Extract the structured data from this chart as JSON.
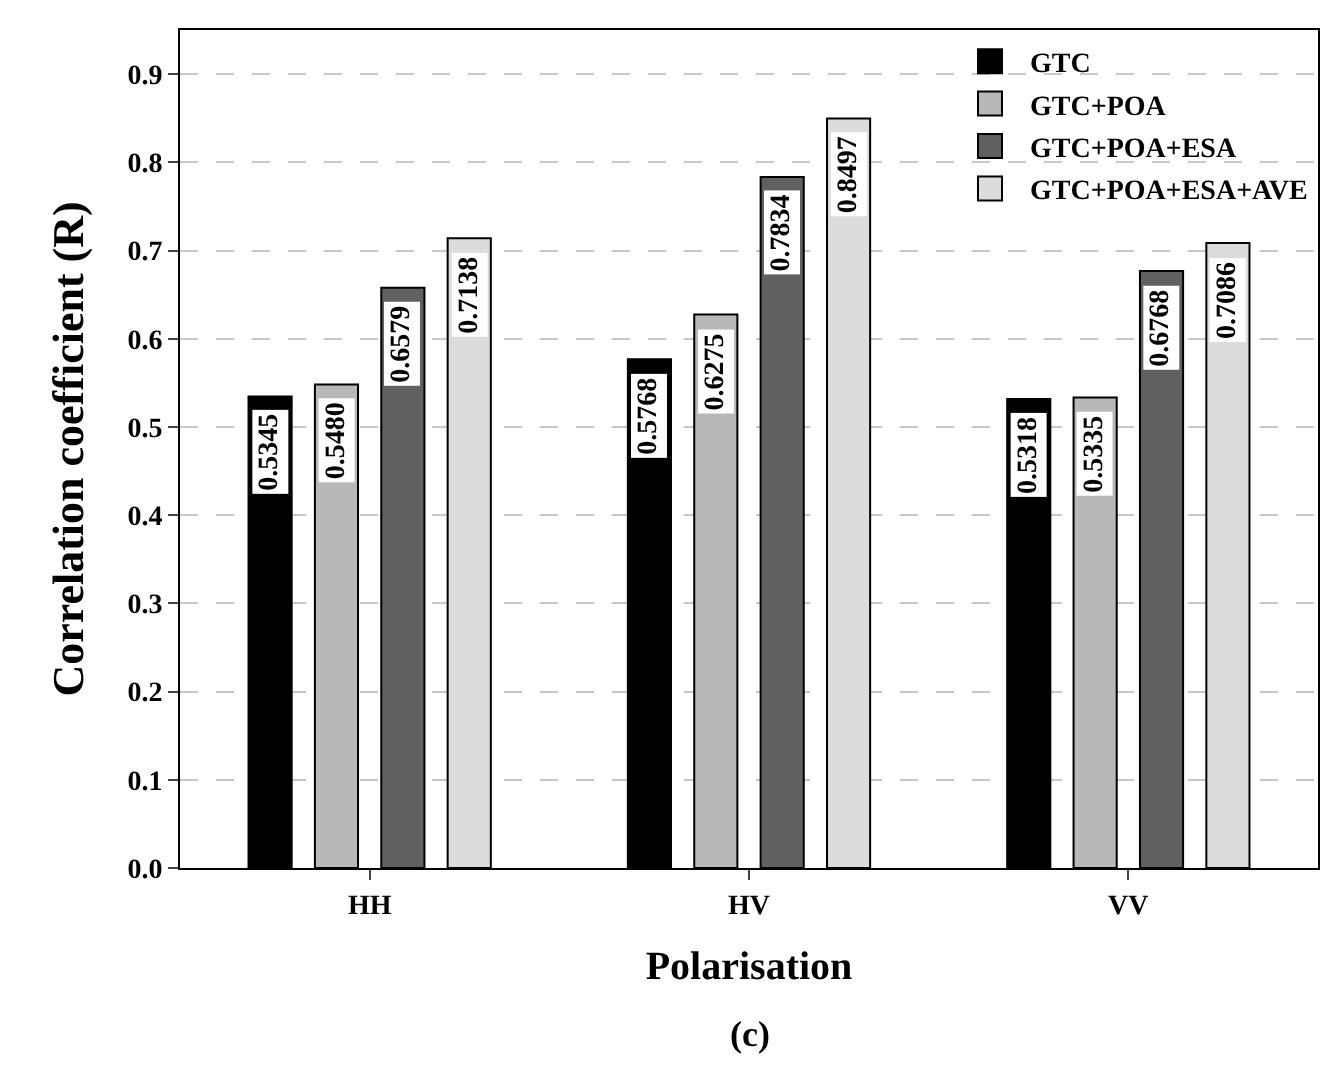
{
  "chart_data": {
    "type": "bar",
    "xlabel": "Polarisation",
    "ylabel": "Correlation coefficient (R)",
    "categories": [
      "HH",
      "HV",
      "VV"
    ],
    "series": [
      {
        "name": "GTC",
        "color": "#000000",
        "values": [
          0.5345,
          0.5768,
          0.5318
        ],
        "value_labels": [
          "0.5345",
          "0.5768",
          "0.5318"
        ]
      },
      {
        "name": "GTC+POA",
        "color": "#b8b8b8",
        "values": [
          0.548,
          0.6275,
          0.5335
        ],
        "value_labels": [
          "0.5480",
          "0.6275",
          "0.5335"
        ]
      },
      {
        "name": "GTC+POA+ESA",
        "color": "#606060",
        "values": [
          0.6579,
          0.7834,
          0.6768
        ],
        "value_labels": [
          "0.6579",
          "0.7834",
          "0.6768"
        ]
      },
      {
        "name": "GTC+POA+ESA+AVE",
        "color": "#dcdcdc",
        "values": [
          0.7138,
          0.8497,
          0.7086
        ],
        "value_labels": [
          "0.7138",
          "0.8497",
          "0.7086"
        ]
      }
    ],
    "ylim": [
      0,
      0.95
    ],
    "yticks": [
      {
        "value": 0,
        "label": "0.0"
      },
      0.1,
      0.2,
      0.3,
      0.4,
      0.5,
      0.6,
      0.7,
      0.8,
      0.9
    ],
    "grid": "y",
    "legend": "top right",
    "annotations": [
      "(c)"
    ]
  }
}
